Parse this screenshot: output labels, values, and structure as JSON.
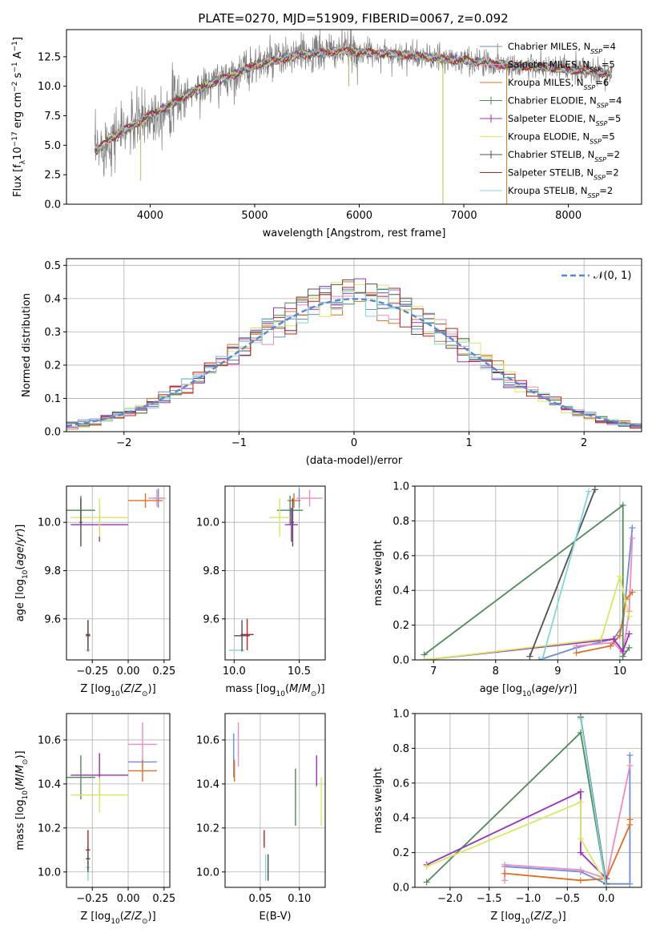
{
  "title": "PLATE=0270, MJD=51909, FIBERID=0067, z=0.092",
  "colors": {
    "chabrier_miles": "#6a8de0",
    "salpeter_miles": "#f08bc0",
    "kroupa_miles": "#e07020",
    "chabrier_elodie": "#4f8a5a",
    "salpeter_elodie": "#9b30c0",
    "kroupa_elodie": "#d8e860",
    "chabrier_stelib": "#505050",
    "salpeter_stelib": "#c02020",
    "kroupa_stelib": "#80d8d8",
    "normal_curve": "#5588dd"
  },
  "models": [
    {
      "key": "chabrier_miles",
      "label": "Chabrier MILES, N",
      "nssp": "=4"
    },
    {
      "key": "salpeter_miles",
      "label": "Salpeter MILES, N",
      "nssp": "=5"
    },
    {
      "key": "kroupa_miles",
      "label": "Kroupa MILES, N",
      "nssp": "=6"
    },
    {
      "key": "chabrier_elodie",
      "label": "Chabrier ELODIE, N",
      "nssp": "=4"
    },
    {
      "key": "salpeter_elodie",
      "label": "Salpeter ELODIE, N",
      "nssp": "=5"
    },
    {
      "key": "kroupa_elodie",
      "label": "Kroupa ELODIE, N",
      "nssp": "=5"
    },
    {
      "key": "chabrier_stelib",
      "label": "Chabrier STELIB, N",
      "nssp": "=2"
    },
    {
      "key": "salpeter_stelib",
      "label": "Salpeter STELIB, N",
      "nssp": "=2"
    },
    {
      "key": "kroupa_stelib",
      "label": "Kroupa STELIB, N",
      "nssp": "=2"
    }
  ],
  "chart_data": [
    {
      "type": "line",
      "panel": "spectrum",
      "xlabel": "wavelength [Angstrom, rest frame]",
      "ylabel": "Flux [f",
      "xlim": [
        3200,
        8700
      ],
      "ylim": [
        0,
        14.8
      ],
      "xticks": [
        4000,
        5000,
        6000,
        7000,
        8000
      ],
      "yticks": [
        0.0,
        2.5,
        5.0,
        7.5,
        10.0,
        12.5
      ],
      "model_x": [
        3500,
        3600,
        3700,
        3800,
        3900,
        4000,
        4200,
        4400,
        4600,
        4800,
        5000,
        5200,
        5400,
        5600,
        5800,
        6000,
        6200,
        6400,
        6600,
        6800,
        7000,
        7200,
        7400,
        7600,
        7800,
        8000,
        8200,
        8400
      ],
      "model_y": [
        4.5,
        5.5,
        6.0,
        6.5,
        7.0,
        7.5,
        8.5,
        9.5,
        10.3,
        11.0,
        11.8,
        12.2,
        12.6,
        12.8,
        13.0,
        12.9,
        12.8,
        12.7,
        12.5,
        12.3,
        12.2,
        12.0,
        11.8,
        11.7,
        11.6,
        11.4,
        11.3,
        11.0
      ],
      "grid": false,
      "legend_position": "top-right"
    },
    {
      "type": "histogram",
      "panel": "residuals",
      "xlabel": "(data-model)/error",
      "ylabel": "Normed distribution",
      "xlim": [
        -2.5,
        2.5
      ],
      "ylim": [
        0,
        0.52
      ],
      "xticks": [
        -2,
        -1,
        0,
        1,
        2
      ],
      "yticks": [
        0.0,
        0.1,
        0.2,
        0.3,
        0.4,
        0.5
      ],
      "bin_width": 0.1,
      "curve_label": "𝒩(0, 1)",
      "grid": true,
      "legend_position": "top-right"
    },
    {
      "type": "scatter",
      "panel": "age_vs_Z",
      "xlabel": "Z [log",
      "ylabel": "age  [log",
      "xlim": [
        -0.43,
        0.29
      ],
      "ylim": [
        9.43,
        10.15
      ],
      "xticks": [
        -0.25,
        0.0,
        0.25
      ],
      "yticks": [
        9.6,
        9.8,
        10.0
      ],
      "points": [
        {
          "key": "chabrier_miles",
          "x": 0.21,
          "y": 10.1,
          "xerr": 0.03,
          "yerr": 0.04
        },
        {
          "key": "salpeter_miles",
          "x": 0.2,
          "y": 10.1,
          "xerr": 0.06,
          "yerr": 0.035
        },
        {
          "key": "kroupa_miles",
          "x": 0.12,
          "y": 10.09,
          "xerr": 0.12,
          "yerr": 0.03
        },
        {
          "key": "chabrier_elodie",
          "x": -0.33,
          "y": 10.05,
          "xerr": 0.1,
          "yerr": 0.06
        },
        {
          "key": "salpeter_elodie",
          "x": -0.2,
          "y": 9.99,
          "xerr": 0.2,
          "yerr": 0.07
        },
        {
          "key": "kroupa_elodie",
          "x": -0.2,
          "y": 10.02,
          "xerr": 0.2,
          "yerr": 0.08
        },
        {
          "key": "chabrier_stelib",
          "x": -0.33,
          "y": 10.0,
          "xerr": 0.01,
          "yerr": 0.1
        },
        {
          "key": "salpeter_stelib",
          "x": -0.28,
          "y": 9.535,
          "xerr": 0.015,
          "yerr": 0.06
        },
        {
          "key": "kroupa_stelib",
          "x": -0.28,
          "y": 9.47,
          "xerr": 0.015,
          "yerr": 0.0
        },
        {
          "key": "chabrier_stelib",
          "x": -0.28,
          "y": 9.53,
          "xerr": 0.015,
          "yerr": 0.065
        }
      ],
      "grid": true
    },
    {
      "type": "scatter",
      "panel": "age_vs_mass",
      "xlabel": "mass [log",
      "ylabel": "",
      "xlim": [
        9.93,
        10.7
      ],
      "ylim": [
        9.43,
        10.15
      ],
      "xticks": [
        10.0,
        10.5
      ],
      "yticks": [
        9.6,
        9.8,
        10.0
      ],
      "points": [
        {
          "key": "chabrier_miles",
          "x": 10.5,
          "y": 10.1,
          "xerr": 0.0,
          "yerr": 0.04
        },
        {
          "key": "salpeter_miles",
          "x": 10.58,
          "y": 10.1,
          "xerr": 0.1,
          "yerr": 0.035
        },
        {
          "key": "kroupa_miles",
          "x": 10.46,
          "y": 10.09,
          "xerr": 0.05,
          "yerr": 0.03
        },
        {
          "key": "chabrier_elodie",
          "x": 10.43,
          "y": 10.05,
          "xerr": 0.1,
          "yerr": 0.06
        },
        {
          "key": "salpeter_elodie",
          "x": 10.44,
          "y": 9.99,
          "xerr": 0.05,
          "yerr": 0.07
        },
        {
          "key": "kroupa_elodie",
          "x": 10.35,
          "y": 10.02,
          "xerr": 0.08,
          "yerr": 0.08
        },
        {
          "key": "chabrier_stelib",
          "x": 10.45,
          "y": 10.0,
          "xerr": 0.01,
          "yerr": 0.1
        },
        {
          "key": "salpeter_stelib",
          "x": 10.1,
          "y": 9.535,
          "xerr": 0.05,
          "yerr": 0.065
        },
        {
          "key": "kroupa_stelib",
          "x": 10.02,
          "y": 9.47,
          "xerr": 0.06,
          "yerr": 0.0
        },
        {
          "key": "chabrier_stelib",
          "x": 10.06,
          "y": 9.53,
          "xerr": 0.06,
          "yerr": 0.065
        }
      ],
      "grid": true
    },
    {
      "type": "line",
      "panel": "massweight_vs_age",
      "xlabel": "age  [log",
      "ylabel": "mass weight",
      "xlim": [
        6.7,
        10.35
      ],
      "ylim": [
        0,
        1.0
      ],
      "xticks": [
        7,
        8,
        9,
        10
      ],
      "yticks": [
        0.0,
        0.2,
        0.4,
        0.6,
        0.8,
        1.0
      ],
      "series": [
        {
          "key": "chabrier_miles",
          "x": [
            8.7,
            9.3,
            9.9,
            10.05,
            10.2
          ],
          "y": [
            0.0,
            0.07,
            0.12,
            0.2,
            0.76
          ]
        },
        {
          "key": "salpeter_miles",
          "x": [
            9.3,
            9.9,
            10.05,
            10.15,
            10.2
          ],
          "y": [
            0.08,
            0.1,
            0.04,
            0.28,
            0.7
          ]
        },
        {
          "key": "kroupa_miles",
          "x": [
            9.3,
            9.85,
            10.0,
            10.1,
            10.2
          ],
          "y": [
            0.04,
            0.08,
            0.14,
            0.35,
            0.39
          ]
        },
        {
          "key": "chabrier_elodie",
          "x": [
            6.85,
            10.05,
            10.05,
            10.15
          ],
          "y": [
            0.03,
            0.89,
            0.02,
            0.07
          ]
        },
        {
          "key": "salpeter_elodie",
          "x": [
            6.85,
            9.9,
            10.05,
            10.15
          ],
          "y": [
            0.0,
            0.12,
            0.05,
            0.15
          ]
        },
        {
          "key": "kroupa_elodie",
          "x": [
            6.85,
            9.7,
            10.0,
            10.15
          ],
          "y": [
            0.0,
            0.12,
            0.48,
            0.25
          ]
        },
        {
          "key": "chabrier_stelib",
          "x": [
            8.55,
            9.6
          ],
          "y": [
            0.02,
            0.98
          ]
        },
        {
          "key": "kroupa_stelib",
          "x": [
            8.75,
            9.5
          ],
          "y": [
            0.0,
            0.97
          ]
        }
      ],
      "grid": true
    },
    {
      "type": "scatter",
      "panel": "mass_vs_Z",
      "xlabel": "Z [log",
      "ylabel": "mass [log",
      "xlim": [
        -0.43,
        0.29
      ],
      "ylim": [
        9.93,
        10.72
      ],
      "xticks": [
        -0.25,
        0.0,
        0.25
      ],
      "yticks": [
        10.0,
        10.2,
        10.4,
        10.6
      ],
      "points": [
        {
          "key": "chabrier_miles",
          "x": 0.1,
          "y": 10.5,
          "xerr": 0.1,
          "yerr": 0.0
        },
        {
          "key": "salpeter_miles",
          "x": 0.1,
          "y": 10.58,
          "xerr": 0.1,
          "yerr": 0.1
        },
        {
          "key": "kroupa_miles",
          "x": 0.1,
          "y": 10.46,
          "xerr": 0.1,
          "yerr": 0.05
        },
        {
          "key": "chabrier_elodie",
          "x": -0.33,
          "y": 10.43,
          "xerr": 0.1,
          "yerr": 0.1
        },
        {
          "key": "salpeter_elodie",
          "x": -0.2,
          "y": 10.44,
          "xerr": 0.2,
          "yerr": 0.1
        },
        {
          "key": "kroupa_elodie",
          "x": -0.2,
          "y": 10.35,
          "xerr": 0.2,
          "yerr": 0.08
        },
        {
          "key": "salpeter_stelib",
          "x": -0.28,
          "y": 10.1,
          "xerr": 0.015,
          "yerr": 0.09
        },
        {
          "key": "kroupa_stelib",
          "x": -0.28,
          "y": 10.02,
          "xerr": 0.015,
          "yerr": 0.06
        },
        {
          "key": "chabrier_stelib",
          "x": -0.28,
          "y": 10.06,
          "xerr": 0.015,
          "yerr": 0.06
        }
      ],
      "grid": true
    },
    {
      "type": "scatter",
      "panel": "mass_vs_ebv",
      "xlabel": "E(B-V)",
      "ylabel": "",
      "xlim": [
        0.005,
        0.133
      ],
      "ylim": [
        9.93,
        10.72
      ],
      "xticks": [
        0.05,
        0.1
      ],
      "yticks": [
        10.0,
        10.2,
        10.4,
        10.6
      ],
      "points": [
        {
          "key": "chabrier_miles",
          "x": 0.016,
          "y": 10.53,
          "yerr": 0.1
        },
        {
          "key": "salpeter_miles",
          "x": 0.022,
          "y": 10.58,
          "yerr": 0.1
        },
        {
          "key": "kroupa_miles",
          "x": 0.017,
          "y": 10.46,
          "yerr": 0.05
        },
        {
          "key": "chabrier_elodie",
          "x": 0.095,
          "y": 10.34,
          "yerr": 0.13
        },
        {
          "key": "salpeter_elodie",
          "x": 0.122,
          "y": 10.46,
          "yerr": 0.07
        },
        {
          "key": "kroupa_elodie",
          "x": 0.128,
          "y": 10.32,
          "yerr": 0.11
        },
        {
          "key": "salpeter_stelib",
          "x": 0.055,
          "y": 10.15,
          "yerr": 0.04
        },
        {
          "key": "kroupa_stelib",
          "x": 0.057,
          "y": 10.02,
          "yerr": 0.06
        },
        {
          "key": "chabrier_stelib",
          "x": 0.06,
          "y": 10.02,
          "yerr": 0.06
        }
      ],
      "grid": true
    },
    {
      "type": "line",
      "panel": "massweight_vs_Z",
      "xlabel": "Z [log",
      "ylabel": "mass weight",
      "xlim": [
        -2.45,
        0.45
      ],
      "ylim": [
        0,
        1.0
      ],
      "xticks": [
        -2.0,
        -1.5,
        -1.0,
        -0.5,
        0.0
      ],
      "yticks": [
        0.0,
        0.2,
        0.4,
        0.6,
        0.8,
        1.0
      ],
      "series": [
        {
          "key": "chabrier_miles",
          "x": [
            -1.3,
            -0.33,
            0.0,
            0.3,
            0.3
          ],
          "y": [
            0.12,
            0.09,
            0.02,
            0.02,
            0.76
          ]
        },
        {
          "key": "salpeter_miles",
          "x": [
            -1.3,
            -1.3,
            -0.33,
            0.0,
            0.3
          ],
          "y": [
            0.04,
            0.13,
            0.1,
            0.05,
            0.7
          ]
        },
        {
          "key": "kroupa_miles",
          "x": [
            -1.3,
            -0.33,
            0.0,
            0.3,
            0.3
          ],
          "y": [
            0.08,
            0.04,
            0.05,
            0.36,
            0.39
          ]
        },
        {
          "key": "chabrier_elodie",
          "x": [
            -2.3,
            -0.33,
            0.0
          ],
          "y": [
            0.03,
            0.89,
            0.0
          ]
        },
        {
          "key": "salpeter_elodie",
          "x": [
            -2.3,
            -0.33,
            -0.33,
            0.0
          ],
          "y": [
            0.13,
            0.55,
            0.2,
            0.05
          ]
        },
        {
          "key": "kroupa_elodie",
          "x": [
            -2.3,
            -0.33,
            -0.33,
            0.0
          ],
          "y": [
            0.12,
            0.49,
            0.28,
            0.02
          ]
        },
        {
          "key": "chabrier_stelib",
          "x": [
            -0.33,
            0.0
          ],
          "y": [
            0.98,
            0.02
          ]
        },
        {
          "key": "kroupa_stelib",
          "x": [
            -0.33,
            0.0
          ],
          "y": [
            0.97,
            0.0
          ]
        }
      ],
      "grid": true
    }
  ]
}
